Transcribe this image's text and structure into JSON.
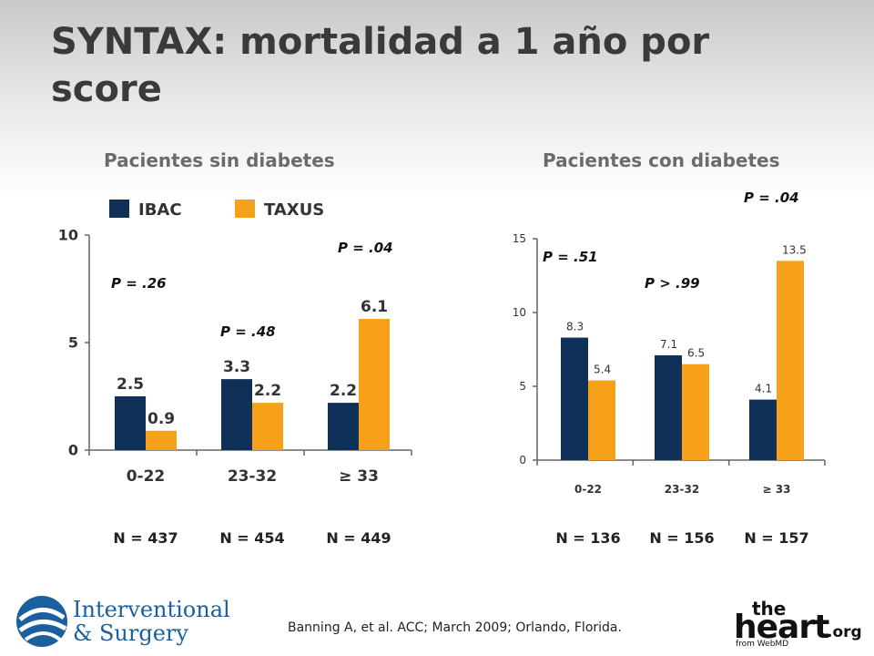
{
  "title": "SYNTAX: mortalidad a 1 año por score",
  "legend": [
    {
      "name": "IBAC",
      "color": "#0f3157"
    },
    {
      "name": "TAXUS",
      "color": "#f7a11a"
    }
  ],
  "colors": {
    "ibac": "#0f3157",
    "taxus": "#f7a11a",
    "axis": "#666666"
  },
  "chart_data": [
    {
      "type": "bar",
      "title": "Pacientes sin diabetes",
      "categories": [
        "0-22",
        "23-32",
        "≥ 33"
      ],
      "series": [
        {
          "name": "IBAC",
          "values": [
            2.5,
            3.3,
            2.2
          ]
        },
        {
          "name": "TAXUS",
          "values": [
            0.9,
            2.2,
            6.1
          ]
        }
      ],
      "value_labels": [
        [
          "2.5",
          "3.3",
          "2.2"
        ],
        [
          "0.9",
          "2.2",
          "6.1"
        ]
      ],
      "ylim": [
        0,
        10
      ],
      "yticks": [
        0,
        5,
        10
      ],
      "ytick_labels": [
        "0",
        "5",
        "10"
      ],
      "p_values": [
        "P = .26",
        "P = .48",
        "P = .04"
      ],
      "n_labels": [
        "N = 437",
        "N = 454",
        "N = 449"
      ]
    },
    {
      "type": "bar",
      "title": "Pacientes con diabetes",
      "categories": [
        "0-22",
        "23-32",
        "≥ 33"
      ],
      "series": [
        {
          "name": "IBAC",
          "values": [
            8.3,
            7.1,
            4.1
          ]
        },
        {
          "name": "TAXUS",
          "values": [
            5.4,
            6.5,
            13.5
          ]
        }
      ],
      "value_labels": [
        [
          "8.3",
          "7.1",
          "4.1"
        ],
        [
          "5.4",
          "6.5",
          "13.5"
        ]
      ],
      "ylim": [
        0,
        15
      ],
      "yticks": [
        0,
        5,
        10,
        15
      ],
      "ytick_labels": [
        "0",
        "5",
        "10",
        "15"
      ],
      "p_values": [
        "P = .51",
        "P > .99",
        "P = .04"
      ],
      "n_labels": [
        "N = 136",
        "N = 156",
        "N = 157"
      ]
    }
  ],
  "footer": {
    "citation": "Banning A, et al. ACC; March 2009; Orlando, Florida.",
    "logo_left_line1": "Interventional",
    "logo_left_line2": "& Surgery",
    "logo_right_the": "the",
    "logo_right_main": "heart",
    "logo_right_org": ".org",
    "logo_right_from": "from WebMD"
  }
}
